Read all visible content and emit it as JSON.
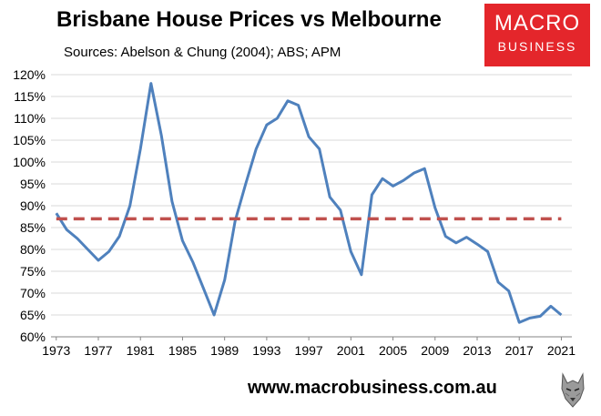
{
  "title": "Brisbane House Prices vs Melbourne",
  "subtitle": "Sources: Abelson & Chung (2004); ABS; APM",
  "logo": {
    "line1": "MACRO",
    "line2": "BUSINESS",
    "background": "#e4262b"
  },
  "footer_url": "www.macrobusiness.com.au",
  "chart_data": {
    "type": "line",
    "title": "Brisbane House Prices vs Melbourne",
    "xlabel": "",
    "ylabel": "",
    "xlim": [
      1972.5,
      2022
    ],
    "ylim": [
      60,
      120
    ],
    "x_ticks": [
      1973,
      1977,
      1981,
      1985,
      1989,
      1993,
      1997,
      2001,
      2005,
      2009,
      2013,
      2017,
      2021
    ],
    "y_ticks": [
      60,
      65,
      70,
      75,
      80,
      85,
      90,
      95,
      100,
      105,
      110,
      115,
      120
    ],
    "y_tick_format": "percent",
    "grid": "horizontal",
    "legend": "none",
    "series": [
      {
        "color": "#4f81bd",
        "x": [
          1973,
          1974,
          1975,
          1976,
          1977,
          1978,
          1979,
          1980,
          1981,
          1982,
          1983,
          1984,
          1985,
          1986,
          1987,
          1988,
          1989,
          1990,
          1991,
          1992,
          1993,
          1994,
          1995,
          1996,
          1997,
          1998,
          1999,
          2000,
          2001,
          2002,
          2003,
          2004,
          2005,
          2006,
          2007,
          2008,
          2009,
          2010,
          2011,
          2012,
          2013,
          2014,
          2015,
          2016,
          2017,
          2018,
          2019,
          2020,
          2021
        ],
        "y": [
          88.3,
          84.5,
          82.5,
          80.0,
          77.5,
          79.5,
          83.0,
          90.0,
          103.0,
          118.0,
          106.0,
          91.0,
          82.0,
          77.0,
          71.0,
          65.0,
          73.0,
          86.5,
          95.0,
          103.0,
          108.5,
          110.0,
          114.0,
          113.0,
          105.8,
          103.0,
          92.0,
          89.0,
          79.5,
          74.2,
          92.5,
          96.2,
          94.5,
          95.8,
          97.5,
          98.5,
          89.5,
          83.0,
          81.5,
          82.8,
          81.2,
          79.5,
          72.5,
          70.5,
          63.3,
          64.3,
          64.7,
          67.0,
          65.0
        ]
      },
      {
        "color": "#c0504d",
        "style": "dashed",
        "x": [
          1973,
          2021
        ],
        "y": [
          87,
          87
        ]
      }
    ]
  }
}
